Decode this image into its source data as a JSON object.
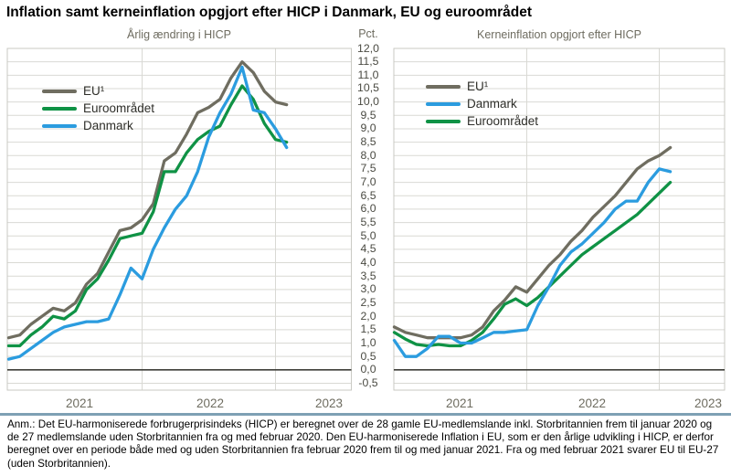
{
  "title": "Inflation samt kerneinflation opgjort efter HICP i Danmark, EU og euroområdet",
  "axis": {
    "unit": "Pct.",
    "y_labels": [
      "12,0",
      "11,5",
      "11,0",
      "10,5",
      "10,0",
      "9,5",
      "9,0",
      "8,5",
      "8,0",
      "7,5",
      "7,0",
      "6,5",
      "6,0",
      "5,5",
      "5,0",
      "4,5",
      "4,0",
      "3,5",
      "3,0",
      "2,5",
      "2,0",
      "1,5",
      "1,0",
      "0,5",
      "0,0",
      "-0,5"
    ],
    "x_years": [
      "2021",
      "2022",
      "2023"
    ]
  },
  "colors": {
    "eu": "#6F6D60",
    "dk": "#2B9CDF",
    "ea": "#0F9245",
    "grid": "#D9D9D4",
    "border": "#C9C9C3",
    "zero": "#3F3F39",
    "divider": "#7EA0B4"
  },
  "chart_data": [
    {
      "type": "line",
      "title": "Årlig ændring i HICP",
      "ylabel": "Pct.",
      "ylim": [
        -0.5,
        12.0
      ],
      "grid": true,
      "legend_position": "top-left",
      "x": [
        "2021-01",
        "2021-02",
        "2021-03",
        "2021-04",
        "2021-05",
        "2021-06",
        "2021-07",
        "2021-08",
        "2021-09",
        "2021-10",
        "2021-11",
        "2021-12",
        "2022-01",
        "2022-02",
        "2022-03",
        "2022-04",
        "2022-05",
        "2022-06",
        "2022-07",
        "2022-08",
        "2022-09",
        "2022-10",
        "2022-11",
        "2022-12",
        "2023-01",
        "2023-02"
      ],
      "x_tick_labels": [
        "2021",
        "2022",
        "2023"
      ],
      "legend": [
        {
          "label": "EU¹",
          "key": "eu"
        },
        {
          "label": "Euroområdet",
          "key": "ea"
        },
        {
          "label": "Danmark",
          "key": "dk"
        }
      ],
      "series": [
        {
          "name": "EU¹",
          "key": "eu",
          "values": [
            1.2,
            1.3,
            1.7,
            2.0,
            2.3,
            2.2,
            2.5,
            3.2,
            3.6,
            4.4,
            5.2,
            5.3,
            5.6,
            6.2,
            7.8,
            8.1,
            8.8,
            9.6,
            9.8,
            10.1,
            10.9,
            11.5,
            11.1,
            10.4,
            10.0,
            9.9
          ]
        },
        {
          "name": "Euroområdet",
          "key": "ea",
          "values": [
            0.9,
            0.9,
            1.3,
            1.6,
            2.0,
            1.9,
            2.2,
            3.0,
            3.4,
            4.1,
            4.9,
            5.0,
            5.1,
            5.9,
            7.4,
            7.4,
            8.1,
            8.6,
            8.9,
            9.1,
            9.9,
            10.6,
            10.1,
            9.2,
            8.6,
            8.5
          ]
        },
        {
          "name": "Danmark",
          "key": "dk",
          "values": [
            0.4,
            0.5,
            0.8,
            1.1,
            1.4,
            1.6,
            1.7,
            1.8,
            1.8,
            1.9,
            2.8,
            3.8,
            3.4,
            4.5,
            5.3,
            6.0,
            6.5,
            7.4,
            8.7,
            9.6,
            10.3,
            11.3,
            9.7,
            9.6,
            9.0,
            8.3
          ]
        }
      ]
    },
    {
      "type": "line",
      "title": "Kerneinflation opgjort efter HICP",
      "ylabel": "Pct.",
      "ylim": [
        -0.5,
        12.0
      ],
      "grid": true,
      "legend_position": "top-left",
      "x": [
        "2021-01",
        "2021-02",
        "2021-03",
        "2021-04",
        "2021-05",
        "2021-06",
        "2021-07",
        "2021-08",
        "2021-09",
        "2021-10",
        "2021-11",
        "2021-12",
        "2022-01",
        "2022-02",
        "2022-03",
        "2022-04",
        "2022-05",
        "2022-06",
        "2022-07",
        "2022-08",
        "2022-09",
        "2022-10",
        "2022-11",
        "2022-12",
        "2023-01",
        "2023-02"
      ],
      "x_tick_labels": [
        "2021",
        "2022",
        "2023"
      ],
      "legend": [
        {
          "label": "EU¹",
          "key": "eu"
        },
        {
          "label": "Danmark",
          "key": "dk"
        },
        {
          "label": "Euroområdet",
          "key": "ea"
        }
      ],
      "series": [
        {
          "name": "EU¹",
          "key": "eu",
          "values": [
            1.6,
            1.4,
            1.3,
            1.2,
            1.2,
            1.2,
            1.2,
            1.3,
            1.6,
            2.2,
            2.6,
            3.1,
            2.9,
            3.4,
            3.9,
            4.3,
            4.8,
            5.2,
            5.7,
            6.1,
            6.5,
            7.0,
            7.5,
            7.8,
            8.0,
            8.3
          ]
        },
        {
          "name": "Euroområdet",
          "key": "ea",
          "values": [
            1.4,
            1.15,
            0.95,
            0.9,
            0.95,
            0.9,
            0.9,
            1.1,
            1.4,
            1.9,
            2.45,
            2.65,
            2.4,
            2.7,
            3.1,
            3.5,
            3.9,
            4.3,
            4.6,
            4.9,
            5.2,
            5.5,
            5.8,
            6.2,
            6.6,
            7.0
          ]
        },
        {
          "name": "Danmark",
          "key": "dk",
          "values": [
            1.1,
            0.5,
            0.5,
            0.8,
            1.25,
            1.25,
            1.0,
            1.0,
            1.2,
            1.4,
            1.4,
            1.45,
            1.5,
            2.4,
            3.1,
            3.9,
            4.4,
            4.7,
            5.1,
            5.5,
            6.0,
            6.3,
            6.3,
            7.0,
            7.5,
            7.4
          ]
        }
      ]
    }
  ],
  "note": "Anm.: Det EU-harmoniserede forbrugerprisindeks (HICP) er beregnet over de 28 gamle EU-medlemslande inkl. Storbritannien frem til januar 2020 og de 27 medlemslande uden Storbritannien fra og med februar 2020. Den EU-harmoniserede Inflation i EU, som er den årlige udvikling i HICP, er derfor beregnet over en periode både med og uden Storbritannien fra februar 2020 frem til og med januar 2021. Fra og med februar 2021 svarer EU til EU-27 (uden Storbritannien)."
}
